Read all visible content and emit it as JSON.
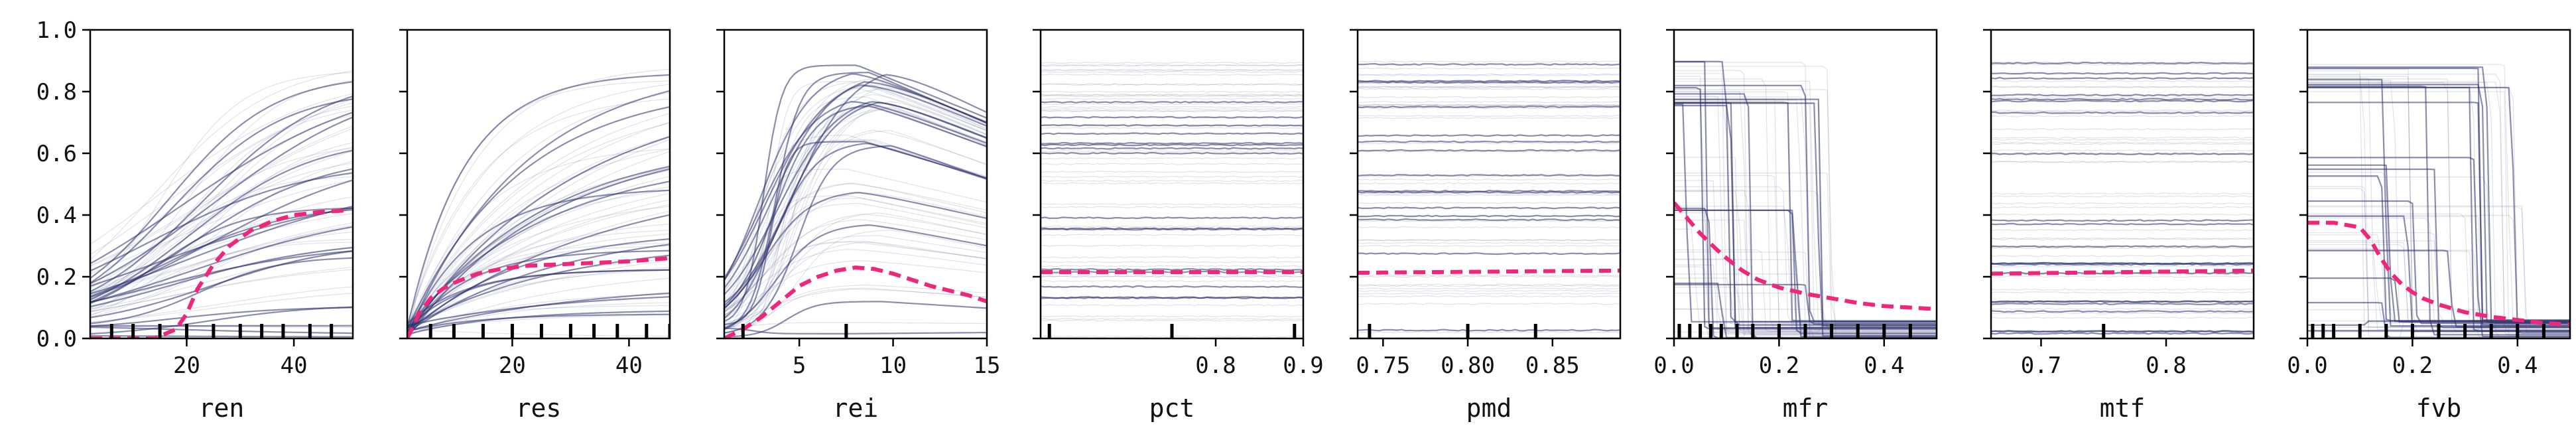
{
  "chart_data": {
    "type": "line",
    "shared_y": {
      "ylim": [
        0.0,
        1.0
      ],
      "ticks": [
        0.0,
        0.2,
        0.4,
        0.6,
        0.8,
        1.0
      ],
      "tick_labels": [
        "0.0",
        "0.2",
        "0.4",
        "0.6",
        "0.8",
        "1.0"
      ]
    },
    "colors": {
      "ice": "#2b2f6b",
      "average": "#f0267a",
      "rug": "#000000",
      "frame": "#000000"
    },
    "panels": [
      {
        "xlabel": "ren",
        "xlim": [
          2,
          51
        ],
        "xticks": [
          20,
          40
        ],
        "xtick_labels": [
          "20",
          "40"
        ],
        "show_y_tick_labels": true,
        "rug": [
          6,
          10,
          15,
          20,
          25,
          30,
          34,
          38,
          43,
          47
        ],
        "average": {
          "x": [
            2,
            10,
            14,
            18,
            20,
            22,
            25,
            28,
            32,
            36,
            40,
            45,
            50
          ],
          "y": [
            0.0,
            0.0,
            0.0,
            0.03,
            0.08,
            0.16,
            0.24,
            0.3,
            0.35,
            0.38,
            0.4,
            0.41,
            0.415
          ]
        },
        "ice_shape": "sigmoid_rise",
        "ice_center": [
          13,
          26
        ],
        "ice_width": [
          1.2,
          4
        ]
      },
      {
        "xlabel": "res",
        "xlim": [
          2,
          47
        ],
        "xticks": [
          20,
          40
        ],
        "xtick_labels": [
          "20",
          "40"
        ],
        "show_y_tick_labels": false,
        "rug": [
          6,
          10,
          15,
          20,
          25,
          30,
          34,
          38,
          43,
          47
        ],
        "average": {
          "x": [
            2,
            4,
            6,
            8,
            10,
            14,
            18,
            22,
            28,
            34,
            40,
            47
          ],
          "y": [
            0.0,
            0.08,
            0.13,
            0.16,
            0.18,
            0.21,
            0.225,
            0.235,
            0.24,
            0.245,
            0.25,
            0.26
          ]
        },
        "ice_shape": "concave_rise",
        "ice_center": [
          3,
          12
        ],
        "ice_width": [
          2,
          8
        ]
      },
      {
        "xlabel": "rei",
        "xlim": [
          1,
          15
        ],
        "xticks": [
          5,
          10,
          15
        ],
        "xtick_labels": [
          "5",
          "10",
          "15"
        ],
        "show_y_tick_labels": false,
        "rug": [
          2,
          7.5
        ],
        "average": {
          "x": [
            1,
            2,
            3,
            4,
            5,
            6,
            7,
            8,
            9,
            10,
            11,
            12,
            13,
            14,
            15
          ],
          "y": [
            0.0,
            0.03,
            0.07,
            0.12,
            0.17,
            0.2,
            0.22,
            0.23,
            0.225,
            0.21,
            0.19,
            0.17,
            0.155,
            0.14,
            0.12
          ]
        },
        "ice_shape": "hump",
        "ice_center": [
          2.5,
          5
        ],
        "ice_width": [
          0.3,
          1.2
        ]
      },
      {
        "xlabel": "pct",
        "xlim": [
          0.6,
          0.9
        ],
        "xticks": [
          0.8,
          0.9
        ],
        "xtick_labels": [
          "0.8",
          "0.9"
        ],
        "show_y_tick_labels": false,
        "rug": [
          0.61,
          0.75,
          0.89
        ],
        "average": {
          "x": [
            0.6,
            0.9
          ],
          "y": [
            0.215,
            0.215
          ]
        },
        "ice_shape": "flat"
      },
      {
        "xlabel": "pmd",
        "xlim": [
          0.735,
          0.89
        ],
        "xticks": [
          0.75,
          0.8,
          0.85
        ],
        "xtick_labels": [
          "0.75",
          "0.80",
          "0.85"
        ],
        "show_y_tick_labels": false,
        "rug": [
          0.742,
          0.8,
          0.84
        ],
        "average": {
          "x": [
            0.735,
            0.89
          ],
          "y": [
            0.213,
            0.22
          ]
        },
        "ice_shape": "flat"
      },
      {
        "xlabel": "mfr",
        "xlim": [
          0.0,
          0.5
        ],
        "xticks": [
          0.0,
          0.2,
          0.4
        ],
        "xtick_labels": [
          "0.0",
          "0.2",
          "0.4"
        ],
        "show_y_tick_labels": false,
        "rug": [
          0.01,
          0.03,
          0.05,
          0.07,
          0.09,
          0.12,
          0.15,
          0.2,
          0.25,
          0.3,
          0.35,
          0.4,
          0.45
        ],
        "average": {
          "x": [
            0.0,
            0.02,
            0.05,
            0.08,
            0.1,
            0.13,
            0.16,
            0.2,
            0.25,
            0.3,
            0.35,
            0.4,
            0.45,
            0.5
          ],
          "y": [
            0.44,
            0.4,
            0.34,
            0.29,
            0.26,
            0.22,
            0.19,
            0.165,
            0.145,
            0.13,
            0.115,
            0.105,
            0.1,
            0.095
          ]
        },
        "ice_shape": "sigmoid_drop",
        "ice_center": [
          0.02,
          0.3
        ],
        "ice_width": [
          0.005,
          0.03
        ]
      },
      {
        "xlabel": "mtf",
        "xlim": [
          0.66,
          0.87
        ],
        "xticks": [
          0.7,
          0.8
        ],
        "xtick_labels": [
          "0.7",
          "0.8"
        ],
        "show_y_tick_labels": false,
        "rug": [
          0.75
        ],
        "average": {
          "x": [
            0.66,
            0.87
          ],
          "y": [
            0.21,
            0.22
          ]
        },
        "ice_shape": "flat"
      },
      {
        "xlabel": "fvb",
        "xlim": [
          0.0,
          0.5
        ],
        "xticks": [
          0.0,
          0.2,
          0.4
        ],
        "xtick_labels": [
          "0.0",
          "0.2",
          "0.4"
        ],
        "show_y_tick_labels": false,
        "rug": [
          0.01,
          0.03,
          0.05,
          0.1,
          0.15,
          0.2,
          0.25,
          0.3,
          0.35,
          0.4,
          0.45
        ],
        "average": {
          "x": [
            0.0,
            0.05,
            0.1,
            0.12,
            0.14,
            0.16,
            0.18,
            0.2,
            0.22,
            0.25,
            0.3,
            0.35,
            0.4,
            0.45,
            0.5
          ],
          "y": [
            0.375,
            0.375,
            0.36,
            0.32,
            0.26,
            0.21,
            0.175,
            0.15,
            0.13,
            0.11,
            0.085,
            0.07,
            0.06,
            0.05,
            0.045
          ]
        },
        "ice_shape": "sigmoid_drop",
        "ice_center": [
          0.1,
          0.42
        ],
        "ice_width": [
          0.005,
          0.03
        ]
      }
    ]
  }
}
